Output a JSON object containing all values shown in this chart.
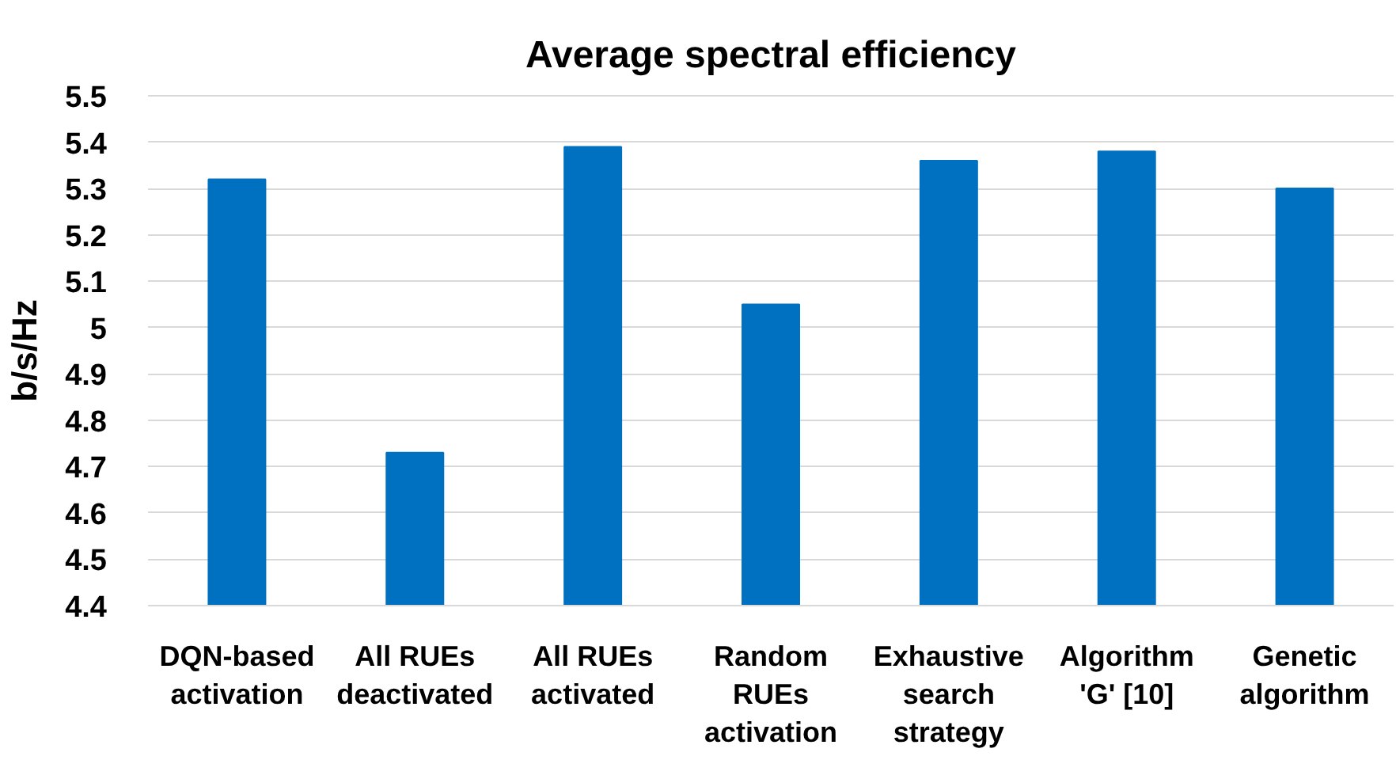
{
  "chart_data": {
    "type": "bar",
    "title": "Average spectral efficiency",
    "ylabel": "b/s/Hz",
    "categories": [
      "DQN-based activation",
      "All RUEs deactivated",
      "All RUEs activated",
      "Random RUEs activation",
      "Exhaustive search strategy",
      "Algorithm 'G' [10]",
      "Genetic algorithm"
    ],
    "values": [
      5.32,
      4.73,
      5.39,
      5.05,
      5.36,
      5.38,
      5.3
    ],
    "color": "#0070c0",
    "ylim": [
      4.4,
      5.5
    ],
    "yticks": [
      4.4,
      4.5,
      4.6,
      4.7,
      4.8,
      4.9,
      5,
      5.1,
      5.2,
      5.3,
      5.4,
      5.5
    ],
    "grid": "y"
  }
}
